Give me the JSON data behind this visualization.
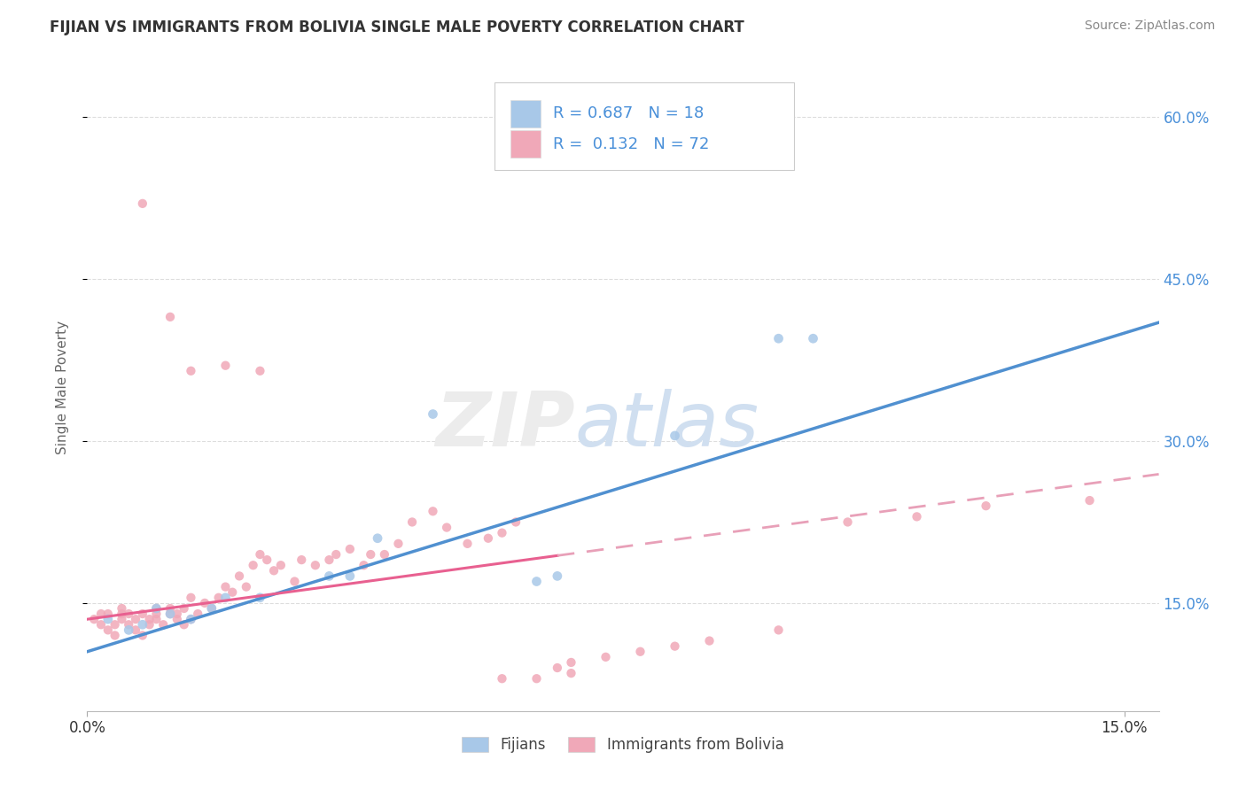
{
  "title": "FIJIAN VS IMMIGRANTS FROM BOLIVIA SINGLE MALE POVERTY CORRELATION CHART",
  "source": "Source: ZipAtlas.com",
  "ylabel": "Single Male Poverty",
  "xlim": [
    0.0,
    0.155
  ],
  "ylim": [
    0.05,
    0.65
  ],
  "yticks": [
    0.15,
    0.3,
    0.45,
    0.6
  ],
  "ytick_labels": [
    "15.0%",
    "30.0%",
    "45.0%",
    "60.0%"
  ],
  "fijian_color": "#A8C8E8",
  "bolivia_color": "#F0A8B8",
  "fijian_line_color": "#5090D0",
  "bolivia_solid_color": "#E86090",
  "bolivia_dash_color": "#E8A0B8",
  "legend_text_color": "#4A90D9",
  "axis_tick_color": "#4A90D9",
  "title_color": "#333333",
  "source_color": "#888888",
  "ylabel_color": "#666666",
  "grid_color": "#DDDDDD",
  "legend_label1": "Fijians",
  "legend_label2": "Immigrants from Bolivia",
  "fijian_x": [
    0.003,
    0.006,
    0.008,
    0.01,
    0.012,
    0.015,
    0.018,
    0.02,
    0.025,
    0.035,
    0.038,
    0.042,
    0.05,
    0.065,
    0.068,
    0.085,
    0.1,
    0.105
  ],
  "fijian_y": [
    0.135,
    0.125,
    0.13,
    0.145,
    0.14,
    0.135,
    0.145,
    0.155,
    0.155,
    0.175,
    0.175,
    0.21,
    0.325,
    0.17,
    0.175,
    0.305,
    0.395,
    0.395
  ],
  "bolivia_x": [
    0.001,
    0.002,
    0.002,
    0.003,
    0.003,
    0.004,
    0.004,
    0.005,
    0.005,
    0.005,
    0.006,
    0.006,
    0.007,
    0.007,
    0.008,
    0.008,
    0.009,
    0.009,
    0.01,
    0.01,
    0.01,
    0.011,
    0.012,
    0.012,
    0.013,
    0.013,
    0.014,
    0.014,
    0.015,
    0.015,
    0.016,
    0.017,
    0.018,
    0.019,
    0.02,
    0.021,
    0.022,
    0.023,
    0.024,
    0.025,
    0.026,
    0.027,
    0.028,
    0.03,
    0.031,
    0.033,
    0.035,
    0.036,
    0.038,
    0.04,
    0.041,
    0.043,
    0.045,
    0.047,
    0.05,
    0.052,
    0.055,
    0.058,
    0.06,
    0.062,
    0.065,
    0.068,
    0.07,
    0.075,
    0.08,
    0.085,
    0.09,
    0.1,
    0.11,
    0.12,
    0.13,
    0.145
  ],
  "bolivia_y": [
    0.135,
    0.13,
    0.14,
    0.125,
    0.14,
    0.13,
    0.12,
    0.135,
    0.14,
    0.145,
    0.13,
    0.14,
    0.125,
    0.135,
    0.12,
    0.14,
    0.13,
    0.135,
    0.14,
    0.145,
    0.135,
    0.13,
    0.14,
    0.145,
    0.135,
    0.14,
    0.13,
    0.145,
    0.135,
    0.155,
    0.14,
    0.15,
    0.145,
    0.155,
    0.165,
    0.16,
    0.175,
    0.165,
    0.185,
    0.195,
    0.19,
    0.18,
    0.185,
    0.17,
    0.19,
    0.185,
    0.19,
    0.195,
    0.2,
    0.185,
    0.195,
    0.195,
    0.205,
    0.225,
    0.235,
    0.22,
    0.205,
    0.21,
    0.215,
    0.225,
    0.08,
    0.09,
    0.095,
    0.1,
    0.105,
    0.11,
    0.115,
    0.125,
    0.225,
    0.23,
    0.24,
    0.245
  ],
  "bolivia_outlier_x": [
    0.008,
    0.012,
    0.015,
    0.02,
    0.025,
    0.06,
    0.07
  ],
  "bolivia_outlier_y": [
    0.52,
    0.415,
    0.365,
    0.37,
    0.365,
    0.08,
    0.085
  ],
  "background_color": "#FFFFFF"
}
